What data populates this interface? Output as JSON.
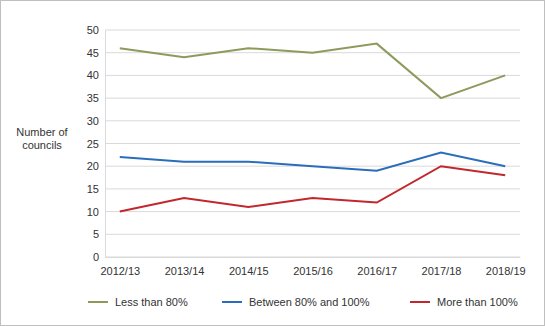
{
  "chart_data": {
    "type": "line",
    "y_label": "Number of councils",
    "categories": [
      "2012/13",
      "2013/14",
      "2014/15",
      "2015/16",
      "2016/17",
      "2017/18",
      "2018/19"
    ],
    "series": [
      {
        "name": "Less than 80%",
        "color": "#8c9a5b",
        "values": [
          46,
          44,
          46,
          45,
          47,
          35,
          40
        ]
      },
      {
        "name": "Between 80% and 100%",
        "color": "#2a6ebb",
        "values": [
          22,
          21,
          21,
          20,
          19,
          23,
          20
        ]
      },
      {
        "name": "More than 100%",
        "color": "#c1272d",
        "values": [
          10,
          13,
          11,
          13,
          12,
          20,
          18
        ]
      }
    ],
    "ylim": [
      0,
      50
    ],
    "yticks": [
      0,
      5,
      10,
      15,
      20,
      25,
      30,
      35,
      40,
      45,
      50
    ],
    "grid": true,
    "legend": "bottom"
  }
}
